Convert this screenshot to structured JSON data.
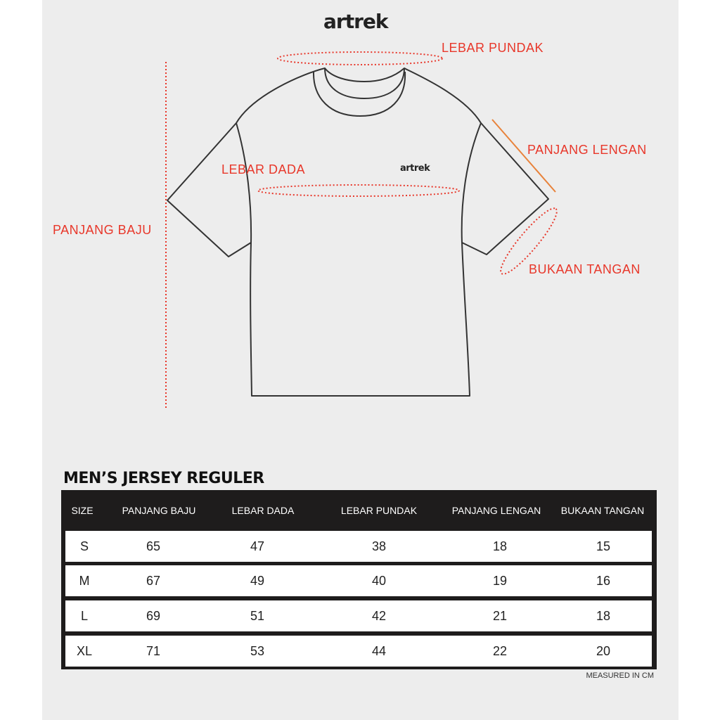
{
  "brand": "artrek",
  "labels": {
    "lebar_pundak": "LEBAR PUNDAK",
    "panjang_lengan": "PANJANG LENGAN",
    "lebar_dada": "LEBAR DADA",
    "panjang_baju": "PANJANG BAJU",
    "bukaan_tangan": "BUKAAN TANGAN"
  },
  "accent_color": "#e8372a",
  "table": {
    "title": "MEN’S JERSEY REGULER",
    "headers": [
      "SIZE",
      "PANJANG BAJU",
      "LEBAR DADA",
      "LEBAR PUNDAK",
      "PANJANG LENGAN",
      "BUKAAN TANGAN"
    ],
    "rows": [
      [
        "S",
        "65",
        "47",
        "38",
        "18",
        "15"
      ],
      [
        "M",
        "67",
        "49",
        "40",
        "19",
        "16"
      ],
      [
        "L",
        "69",
        "51",
        "42",
        "21",
        "18"
      ],
      [
        "XL",
        "71",
        "53",
        "44",
        "22",
        "20"
      ]
    ],
    "note": "MEASURED IN CM"
  }
}
